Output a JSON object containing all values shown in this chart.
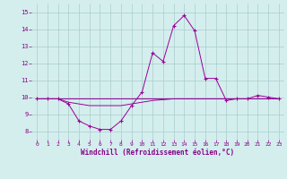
{
  "xlabel": "Windchill (Refroidissement éolien,°C)",
  "x": [
    0,
    1,
    2,
    3,
    4,
    5,
    6,
    7,
    8,
    9,
    10,
    11,
    12,
    13,
    14,
    15,
    16,
    17,
    18,
    19,
    20,
    21,
    22,
    23
  ],
  "y_windchill": [
    9.9,
    9.9,
    9.9,
    9.6,
    8.6,
    8.3,
    8.1,
    8.1,
    8.6,
    9.5,
    10.3,
    12.6,
    12.1,
    14.2,
    14.8,
    13.9,
    11.1,
    11.1,
    9.8,
    9.9,
    9.9,
    10.1,
    10.0,
    9.9
  ],
  "y_temp_low": [
    9.9,
    9.9,
    9.9,
    9.7,
    9.6,
    9.5,
    9.5,
    9.5,
    9.5,
    9.6,
    9.7,
    9.8,
    9.85,
    9.9,
    9.9,
    9.9,
    9.9,
    9.9,
    9.9,
    9.9,
    9.9,
    9.9,
    9.9,
    9.9
  ],
  "y_flat": [
    9.9,
    9.9,
    9.9,
    9.9,
    9.9,
    9.9,
    9.9,
    9.9,
    9.9,
    9.9,
    9.9,
    9.9,
    9.9,
    9.9,
    9.9,
    9.9,
    9.9,
    9.9,
    9.9,
    9.9,
    9.9,
    9.9,
    9.9,
    9.9
  ],
  "ylim": [
    7.5,
    15.5
  ],
  "yticks": [
    8,
    9,
    10,
    11,
    12,
    13,
    14,
    15
  ],
  "xticks": [
    0,
    1,
    2,
    3,
    4,
    5,
    6,
    7,
    8,
    9,
    10,
    11,
    12,
    13,
    14,
    15,
    16,
    17,
    18,
    19,
    20,
    21,
    22,
    23
  ],
  "line_color": "#990099",
  "bg_color": "#d4eeee",
  "grid_color": "#aacccc",
  "tick_label_color": "#880088",
  "xlabel_color": "#880088",
  "marker_size": 2.5
}
